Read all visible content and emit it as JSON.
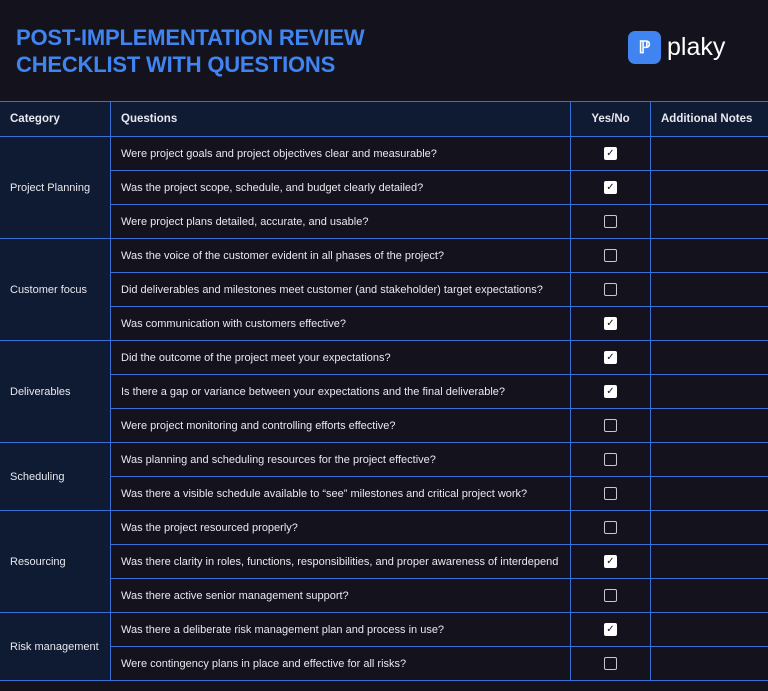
{
  "title_line1": "POST-IMPLEMENTATION REVIEW",
  "title_line2": "CHECKLIST WITH QUESTIONS",
  "logo_text": "plaky",
  "headers": {
    "category": "Category",
    "questions": "Questions",
    "yesno": "Yes/No",
    "notes": "Additional Notes"
  },
  "groups": [
    {
      "category": "Project Planning",
      "rows": [
        {
          "q": "Were project goals and project objectives clear and measurable?",
          "checked": true
        },
        {
          "q": "Was the project scope, schedule, and budget clearly detailed?",
          "checked": true
        },
        {
          "q": "Were project plans detailed, accurate, and usable?",
          "checked": false
        }
      ]
    },
    {
      "category": "Customer focus",
      "rows": [
        {
          "q": "Was the voice of the customer evident in all phases of the project?",
          "checked": false
        },
        {
          "q": "Did deliverables and milestones meet customer (and stakeholder) target expectations?",
          "checked": false
        },
        {
          "q": "Was communication with customers effective?",
          "checked": true
        }
      ]
    },
    {
      "category": "Deliverables",
      "rows": [
        {
          "q": "Did the outcome of the project meet your expectations?",
          "checked": true
        },
        {
          "q": "Is there a gap or variance between your expectations and the final deliverable?",
          "checked": true
        },
        {
          "q": "Were project monitoring and controlling efforts effective?",
          "checked": false
        }
      ]
    },
    {
      "category": "Scheduling",
      "rows": [
        {
          "q": "Was planning and scheduling resources for the project effective?",
          "checked": false
        },
        {
          "q": "Was there a visible schedule available to “see” milestones and critical project work?",
          "checked": false
        }
      ]
    },
    {
      "category": "Resourcing",
      "rows": [
        {
          "q": "Was the project resourced properly?",
          "checked": false
        },
        {
          "q": "Was there clarity in roles, functions, responsibilities, and proper awareness of interdepend",
          "checked": true
        },
        {
          "q": "Was there active senior management support?",
          "checked": false
        }
      ]
    },
    {
      "category": "Risk management",
      "rows": [
        {
          "q": "Was there a deliberate risk management plan and process in use?",
          "checked": true
        },
        {
          "q": "Were contingency plans in place and effective for all risks?",
          "checked": false
        }
      ]
    }
  ]
}
